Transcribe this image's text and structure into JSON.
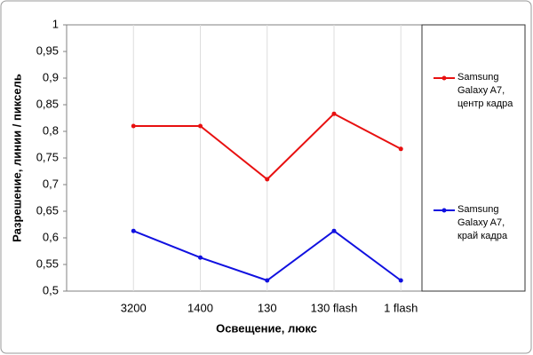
{
  "chart_data": {
    "type": "line",
    "y_label": "Разрешение, линии / пиксель",
    "x_label": "Освещение, люкс",
    "categories": [
      "3200",
      "1400",
      "130",
      "130 flash",
      "1 flash"
    ],
    "series": [
      {
        "name": "Samsung Galaxy A7, центр кадра",
        "color": "#e81010",
        "values": [
          0.81,
          0.81,
          0.71,
          0.833,
          0.767
        ]
      },
      {
        "name": "Samsung Galaxy A7, край кадра",
        "color": "#1010e0",
        "values": [
          0.613,
          0.563,
          0.52,
          0.613,
          0.52
        ]
      }
    ],
    "ylim": [
      0.5,
      1
    ],
    "yticks": [
      {
        "value": 0.5,
        "label": "0,5"
      },
      {
        "value": 0.55,
        "label": "0,55"
      },
      {
        "value": 0.6,
        "label": "0,6"
      },
      {
        "value": 0.65,
        "label": "0,65"
      },
      {
        "value": 0.7,
        "label": "0,7"
      },
      {
        "value": 0.75,
        "label": "0,75"
      },
      {
        "value": 0.8,
        "label": "0,8"
      },
      {
        "value": 0.85,
        "label": "0,85"
      },
      {
        "value": 0.9,
        "label": "0,9"
      },
      {
        "value": 0.95,
        "label": "0,95"
      },
      1
    ],
    "grid": "x",
    "legend": "right"
  }
}
